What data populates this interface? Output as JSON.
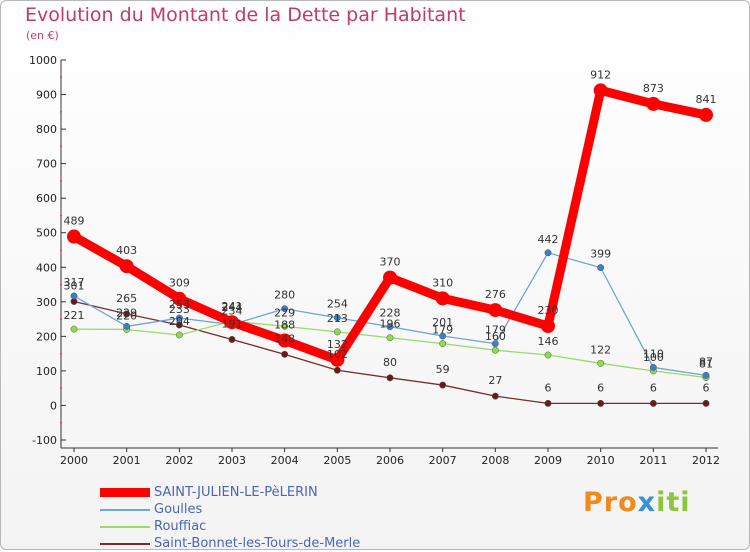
{
  "chart_data": {
    "type": "line",
    "title": "Evolution du Montant de la Dette par Habitant",
    "subtitle": "(en €)",
    "xlabel": "",
    "ylabel": "",
    "x": [
      "2000",
      "2001",
      "2002",
      "2003",
      "2004",
      "2005",
      "2006",
      "2007",
      "2008",
      "2009",
      "2010",
      "2011",
      "2012"
    ],
    "ylim": [
      -100,
      1000
    ],
    "yticks": [
      -100,
      0,
      100,
      200,
      300,
      400,
      500,
      600,
      700,
      800,
      900,
      1000
    ],
    "grid": false,
    "legend_position": "bottom-left",
    "series": [
      {
        "name": "SAINT-JULIEN-LE-PèLERIN",
        "color": "#ff0000",
        "values": [
          489,
          403,
          309,
          241,
          188,
          132,
          370,
          310,
          276,
          230,
          912,
          873,
          841
        ]
      },
      {
        "name": "Goulles",
        "color": "#6fa6d6",
        "values": [
          317,
          229,
          253,
          234,
          280,
          254,
          228,
          201,
          179,
          442,
          399,
          110,
          87
        ]
      },
      {
        "name": "Rouffiac",
        "color": "#9ad96b",
        "values": [
          221,
          220,
          204,
          244,
          229,
          213,
          196,
          179,
          160,
          146,
          122,
          100,
          81
        ]
      },
      {
        "name": "Saint-Bonnet-les-Tours-de-Merle",
        "color": "#7a2a2a",
        "values": [
          301,
          265,
          233,
          191,
          148,
          102,
          80,
          59,
          27,
          6,
          6,
          6,
          6
        ]
      }
    ]
  },
  "logo": {
    "p1": "Pro",
    "p2": "x",
    "p3": "iti"
  }
}
